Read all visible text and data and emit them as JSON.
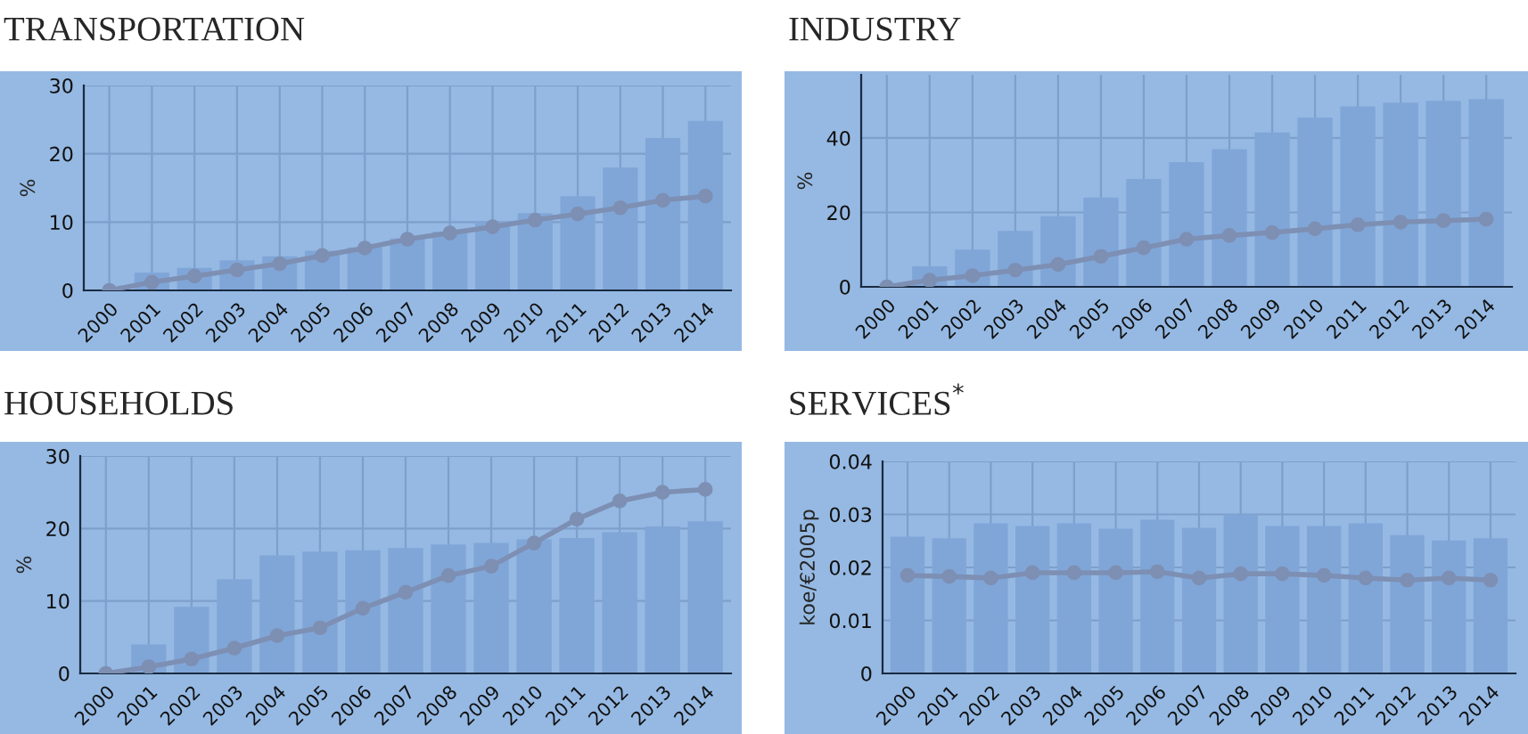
{
  "chart_data": [
    {
      "type": "bar",
      "title": "TRANSPORTATION",
      "ylabel": "%",
      "categories": [
        "2000",
        "2001",
        "2002",
        "2003",
        "2004",
        "2005",
        "2006",
        "2007",
        "2008",
        "2009",
        "2010",
        "2011",
        "2012",
        "2013",
        "2014"
      ],
      "ylim": [
        0,
        30
      ],
      "yticks": [
        0,
        10,
        20,
        30
      ],
      "grid": true,
      "marker": "circle",
      "series": [
        {
          "color": "#80a6d8",
          "values": [
            0,
            2.6,
            3.3,
            4.4,
            5.0,
            5.8,
            6.3,
            7.6,
            8.6,
            10.0,
            11.3,
            13.8,
            18.0,
            22.3,
            24.8
          ]
        },
        {
          "type": "line",
          "color": "#7d8fb3",
          "values": [
            0,
            1.2,
            2.1,
            3.0,
            3.9,
            5.1,
            6.2,
            7.5,
            8.4,
            9.3,
            10.3,
            11.2,
            12.1,
            13.2,
            13.8
          ]
        }
      ]
    },
    {
      "type": "bar",
      "title": "INDUSTRY",
      "ylabel": "%",
      "categories": [
        "2000",
        "2001",
        "2002",
        "2003",
        "2004",
        "2005",
        "2006",
        "2007",
        "2008",
        "2009",
        "2010",
        "2011",
        "2012",
        "2013",
        "2014"
      ],
      "ylim": [
        0,
        57
      ],
      "yticks": [
        0,
        20,
        40
      ],
      "grid": true,
      "marker": "circle",
      "series": [
        {
          "color": "#80a6d8",
          "values": [
            0,
            5.5,
            10,
            15,
            19,
            24,
            29,
            33.5,
            37,
            41.5,
            45.5,
            48.5,
            49.5,
            50,
            50.5
          ]
        },
        {
          "type": "line",
          "color": "#7d8fb3",
          "values": [
            0,
            1.8,
            3,
            4.5,
            6,
            8.2,
            10.5,
            12.8,
            13.8,
            14.6,
            15.6,
            16.7,
            17.4,
            17.8,
            18.2
          ]
        }
      ]
    },
    {
      "type": "bar",
      "title": "HOUSEHOLDS",
      "ylabel": "%",
      "categories": [
        "2000",
        "2001",
        "2002",
        "2003",
        "2004",
        "2005",
        "2006",
        "2007",
        "2008",
        "2009",
        "2010",
        "2011",
        "2012",
        "2013",
        "2014"
      ],
      "ylim": [
        0,
        30
      ],
      "yticks": [
        0,
        10,
        20,
        30
      ],
      "grid": true,
      "marker": "circle",
      "series": [
        {
          "color": "#80a6d8",
          "values": [
            0,
            4,
            9.2,
            13,
            16.3,
            16.8,
            17,
            17.3,
            17.8,
            18,
            18.5,
            18.7,
            19.5,
            20.3,
            21
          ]
        },
        {
          "type": "line",
          "color": "#7d8fb3",
          "values": [
            0,
            0.9,
            2.0,
            3.5,
            5.2,
            6.3,
            9.0,
            11.2,
            13.5,
            14.8,
            18.0,
            21.3,
            23.8,
            25.0,
            25.4
          ]
        }
      ]
    },
    {
      "type": "bar",
      "title": "SERVICES$^{*}$",
      "ylabel": "koe/€2005p",
      "categories": [
        "2000",
        "2001",
        "2002",
        "2003",
        "2004",
        "2005",
        "2006",
        "2007",
        "2008",
        "2009",
        "2010",
        "2011",
        "2012",
        "2013",
        "2014"
      ],
      "ylim": [
        0,
        0.04
      ],
      "yticks": [
        0,
        0.01,
        0.02,
        0.03,
        0.04
      ],
      "grid": true,
      "marker": "circle",
      "series": [
        {
          "color": "#80a6d8",
          "values": [
            0.0258,
            0.0255,
            0.0283,
            0.0278,
            0.0283,
            0.0273,
            0.029,
            0.0275,
            0.03,
            0.0278,
            0.0278,
            0.0283,
            0.0261,
            0.0251,
            0.0255
          ]
        },
        {
          "type": "line",
          "color": "#7d8fb3",
          "values": [
            0.0185,
            0.0183,
            0.018,
            0.019,
            0.019,
            0.019,
            0.0192,
            0.018,
            0.0188,
            0.0188,
            0.0185,
            0.018,
            0.0176,
            0.018,
            0.0176
          ]
        }
      ]
    }
  ]
}
